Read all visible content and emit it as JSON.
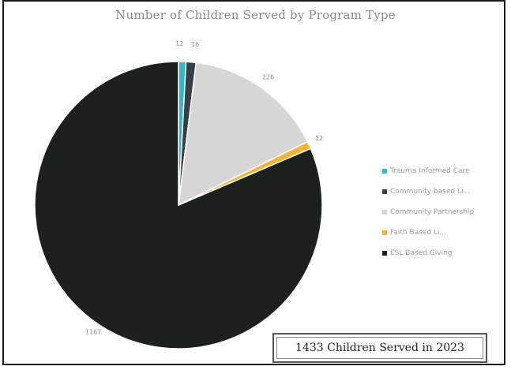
{
  "chart_data": {
    "type": "pie",
    "title": "Number of Children Served by Program Type",
    "categories": [
      "Trauma Informed Care",
      "Community based Li...",
      "Community Partnership",
      "Faith Based Li...",
      "ESL Based Giving"
    ],
    "values": [
      12,
      16,
      226,
      12,
      1167
    ],
    "slice_labels": [
      "12",
      "16",
      "226",
      "12",
      "1167"
    ],
    "colors": [
      "#2bbcd0",
      "#3a3d42",
      "#d6d6d6",
      "#f4b531",
      "#1c211e"
    ],
    "start_angle_deg": 0,
    "legend_position": "right",
    "annotation": "1433 Children Served in 2023"
  }
}
